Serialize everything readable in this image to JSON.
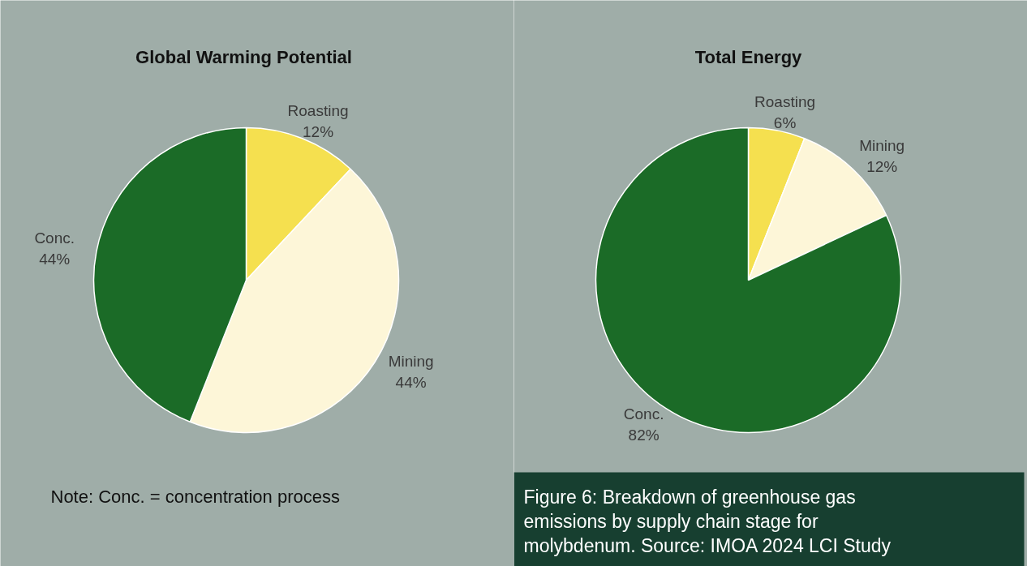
{
  "chart_data": [
    {
      "type": "pie",
      "title": "Global Warming Potential",
      "categories": [
        "Roasting",
        "Mining",
        "Conc."
      ],
      "values": [
        12,
        44,
        44
      ],
      "value_labels": [
        "12%",
        "44%",
        "44%"
      ],
      "colors": [
        "#f5e04f",
        "#fdf6d8",
        "#1b6b27"
      ],
      "legend": false,
      "annotations": [
        "Note: Conc. = concentration process"
      ]
    },
    {
      "type": "pie",
      "title": "Total Energy",
      "categories": [
        "Roasting",
        "Mining",
        "Conc."
      ],
      "values": [
        6,
        12,
        82
      ],
      "value_labels": [
        "6%",
        "12%",
        "82%"
      ],
      "colors": [
        "#f5e04f",
        "#fdf6d8",
        "#1b6b27"
      ],
      "legend": false,
      "annotations": [
        "Figure 6: Breakdown of greenhouse gas emissions by supply chain stage for molybdenum. Source: IMOA 2024 LCI Study"
      ]
    }
  ]
}
